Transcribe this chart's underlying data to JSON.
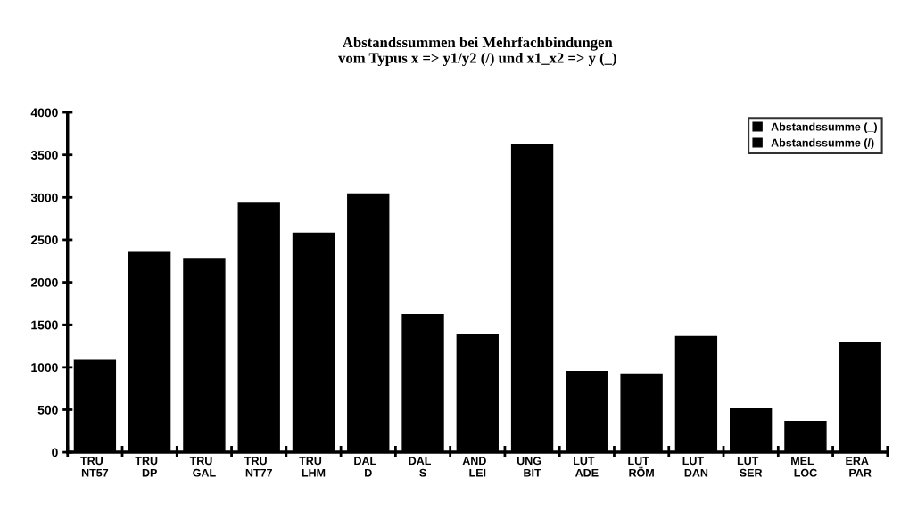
{
  "chart_data": {
    "type": "bar",
    "title": "Abstandssummen bei Mehrfachbindungen\nvom Typus x => y1/y2 (/) und x1_x2 => y (_)",
    "categories": [
      "TRU_\nNT57",
      "TRU_\nDP",
      "TRU_\nGAL",
      "TRU_\nNT77",
      "TRU_\nLHM",
      "DAL_\nD",
      "DAL_\nS",
      "AND_\nLEI",
      "UNG_\nBIT",
      "LUT_\nADE",
      "LUT_\nRÖM",
      "LUT_\nDAN",
      "LUT_\nSER",
      "MEL_\nLOC",
      "ERA_\nPAR"
    ],
    "series": [
      {
        "name": "Abstandssumme (_)",
        "color": "#000000",
        "values": [
          1080,
          2350,
          2280,
          2930,
          2580,
          3040,
          1620,
          1390,
          3620,
          950,
          920,
          1360,
          510,
          360,
          1290
        ]
      },
      {
        "name": "Abstandssumme (/)",
        "color": "#000000",
        "values": [
          null,
          null,
          null,
          null,
          null,
          null,
          null,
          null,
          null,
          null,
          null,
          null,
          null,
          null,
          null
        ]
      }
    ],
    "ylim": [
      0,
      4000
    ],
    "yticks": [
      0,
      500,
      1000,
      1500,
      2000,
      2500,
      3000,
      3500,
      4000
    ],
    "grid": false,
    "legend": "top right"
  }
}
